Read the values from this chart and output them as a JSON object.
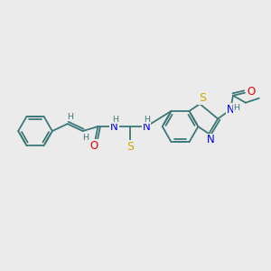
{
  "bg_color": "#ebebeb",
  "bond_color": "#3d7878",
  "atom_colors": {
    "N": "#0000ee",
    "O": "#ee0000",
    "S": "#ccaa00",
    "C": "#3d7878",
    "H": "#3d7878"
  },
  "figsize": [
    3.0,
    3.0
  ],
  "dpi": 100
}
